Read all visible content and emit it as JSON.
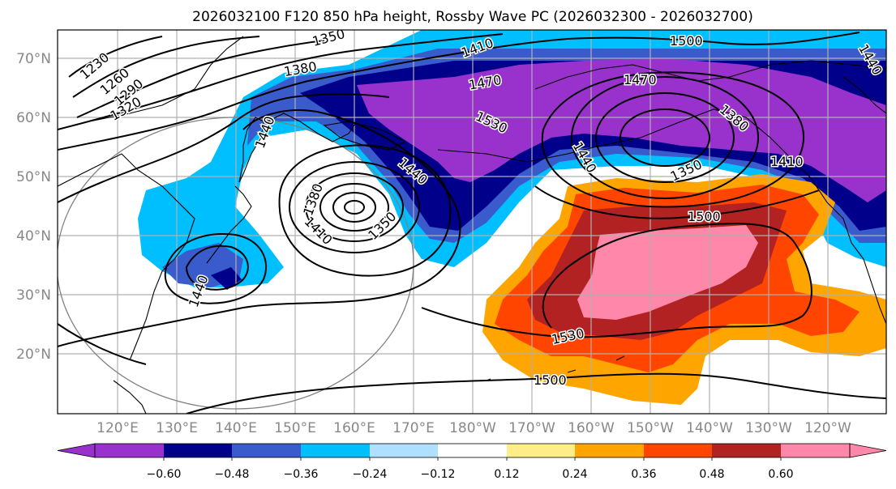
{
  "title": "2026032100 F120 850 hPa height, Rossby Wave PC (2026032300 - 2026032700)",
  "map": {
    "lon_labels": [
      "120°E",
      "130°E",
      "140°E",
      "150°E",
      "160°E",
      "170°E",
      "180°W",
      "170°W",
      "160°W",
      "150°W",
      "140°W",
      "130°W",
      "120°W"
    ],
    "lat_labels": [
      "70°N",
      "60°N",
      "50°N",
      "40°N",
      "30°N",
      "20°N"
    ],
    "contour_labels": {
      "c1230": "1230",
      "c1260": "1260",
      "c1290": "1290",
      "c1320": "1320",
      "c1350_top": "1350",
      "c1380_top": "1380",
      "c1410_top": "1410",
      "c1470_top": "1470",
      "c1470_east": "1470",
      "c1500_top": "1500",
      "c1440_japan": "1440",
      "c1530_mid": "1530",
      "c1440_low": "1440",
      "c1380_low": "1380",
      "c1410_low": "1410",
      "c1350_low": "1350",
      "c1440_ak": "1440",
      "c1350_ak": "1350",
      "c1380_ak": "1380",
      "c1410_ak": "1410",
      "c1440_e": "1440",
      "c1500_mid": "1500",
      "c1530_low": "1530",
      "c1500_bottom": "1500",
      "c1440_sw": "1440"
    }
  },
  "colorbar": {
    "colors": [
      "#9932cc",
      "#00008b",
      "#3a5bcc",
      "#00bfff",
      "#b0e0ff",
      "#ffffff",
      "#ffee88",
      "#ffa500",
      "#ff4500",
      "#b22222",
      "#ff88aa"
    ],
    "ticks": [
      "−0.60",
      "−0.48",
      "−0.36",
      "−0.24",
      "−0.12",
      "0.12",
      "0.24",
      "0.36",
      "0.48",
      "0.60"
    ]
  }
}
